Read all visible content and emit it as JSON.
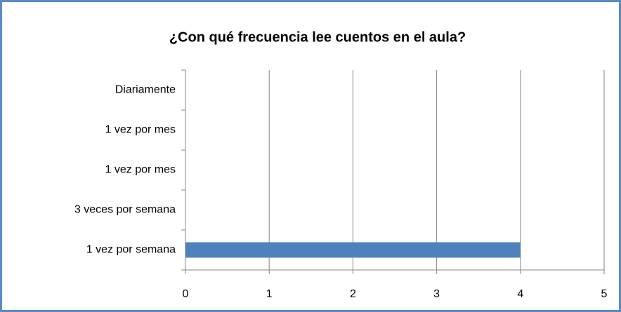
{
  "chart_data": {
    "type": "bar",
    "orientation": "horizontal",
    "title": "¿Con qué frecuencia  lee cuentos en el aula?",
    "categories": [
      "Diariamente",
      "1 vez por mes",
      "1 vez por mes",
      "3 veces por semana",
      "1 vez por semana"
    ],
    "values": [
      0,
      0,
      0,
      0,
      4
    ],
    "color": "#4f81bd",
    "xlim": [
      0,
      5
    ],
    "xticks": [
      0,
      1,
      2,
      3,
      4,
      5
    ],
    "grid": true
  }
}
